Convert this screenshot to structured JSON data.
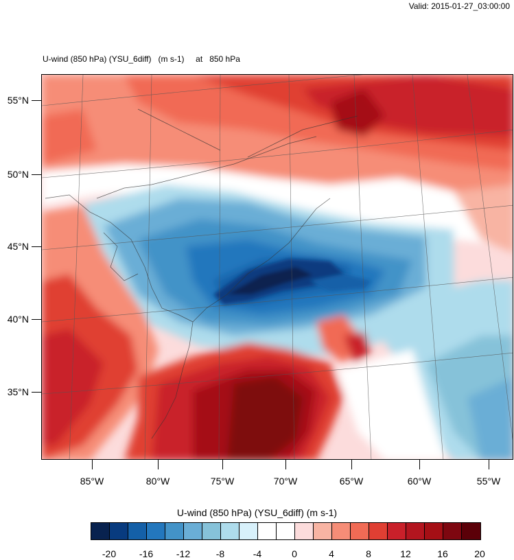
{
  "header": {
    "valid_text": "Valid: 2015-01-27_03:00:00",
    "plot_title": "U-wind (850 hPa) (YSU_6diff)   (m s-1)     at   850 hPa"
  },
  "map": {
    "lat_labels": [
      "55°N",
      "50°N",
      "45°N",
      "40°N",
      "35°N"
    ],
    "lon_labels": [
      "85°W",
      "80°W",
      "75°W",
      "70°W",
      "65°W",
      "60°W",
      "55°W"
    ]
  },
  "colorbar": {
    "title": "U-wind (850 hPa) (YSU_6diff)  (m s-1)",
    "colors": [
      "#08224f",
      "#083b7f",
      "#1460a8",
      "#2377bd",
      "#4393c8",
      "#6aaed6",
      "#86c2d9",
      "#aedcec",
      "#d8f1fb",
      "#ffffff",
      "#ffffff",
      "#fcdcdc",
      "#f8b4a3",
      "#f68d77",
      "#f16b55",
      "#e03f33",
      "#c9202a",
      "#b3151f",
      "#a50f15",
      "#7e0710",
      "#5b0008"
    ],
    "tick_labels": [
      "-20",
      "-16",
      "-12",
      "-8",
      "-4",
      "0",
      "4",
      "8",
      "12",
      "16",
      "20"
    ]
  }
}
